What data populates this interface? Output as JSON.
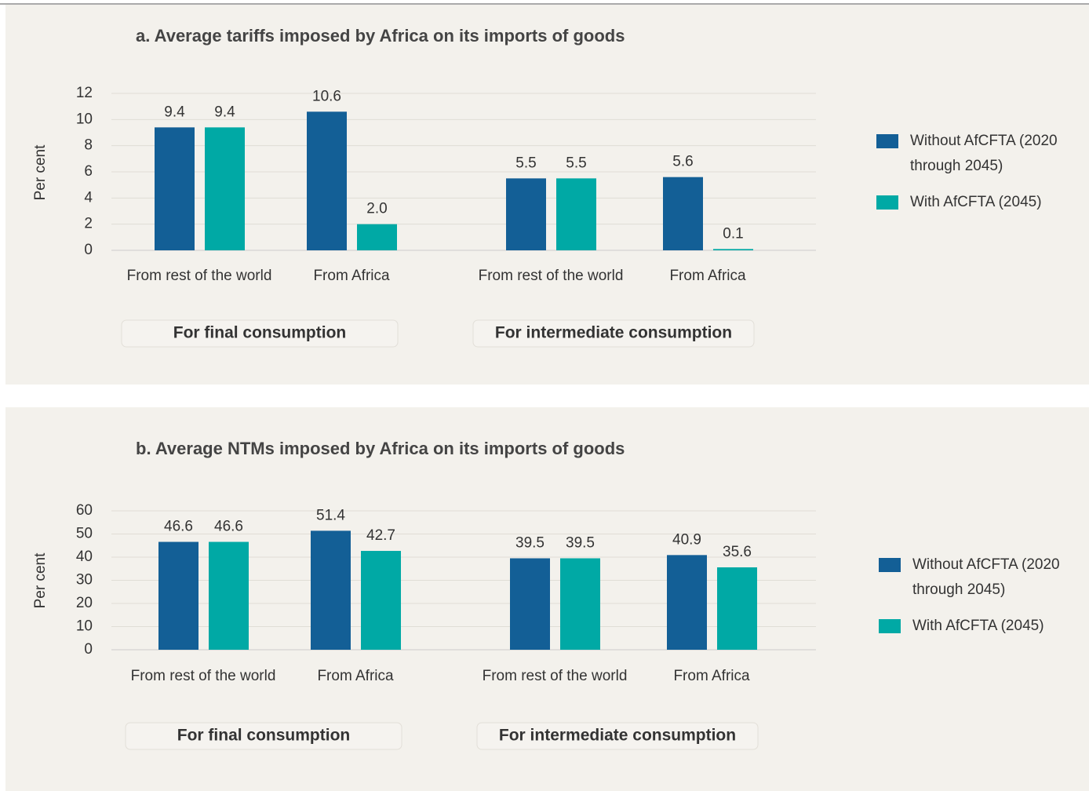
{
  "chart_data": [
    {
      "type": "bar",
      "title": "a. Average tariffs imposed by Africa on its imports of goods",
      "y_label": "Per cent",
      "categories": [
        "From rest of the world",
        "From Africa",
        "From rest of the world",
        "From Africa"
      ],
      "groups": [
        "For final consumption",
        "For intermediate consumption"
      ],
      "series": [
        {
          "name": "Without AfCFTA (2020 through 2045)",
          "color": "#135f96",
          "values": [
            9.4,
            10.6,
            5.5,
            5.6
          ],
          "value_labels": [
            "9.4",
            "10.6",
            "5.5",
            "5.6"
          ]
        },
        {
          "name": "With AfCFTA (2045)",
          "color": "#00a9a5",
          "values": [
            9.4,
            2,
            5.5,
            0.1
          ],
          "value_labels": [
            "9.4",
            "2.0",
            "5.5",
            "0.1"
          ]
        }
      ],
      "ylim": [
        0,
        12
      ],
      "yticks": [
        0,
        2,
        4,
        6,
        8,
        10,
        12
      ],
      "grid": true,
      "legend": "right"
    },
    {
      "type": "bar",
      "title": "b. Average NTMs imposed by Africa on its imports of goods",
      "y_label": "Per cent",
      "categories": [
        "From rest of the world",
        "From Africa",
        "From rest of the world",
        "From Africa"
      ],
      "groups": [
        "For final consumption",
        "For intermediate consumption"
      ],
      "series": [
        {
          "name": "Without AfCFTA (2020 through 2045)",
          "color": "#135f96",
          "values": [
            46.6,
            51.4,
            39.5,
            40.9
          ]
        },
        {
          "name": "With AfCFTA (2045)",
          "color": "#00a9a5",
          "values": [
            46.6,
            42.7,
            39.5,
            35.6
          ]
        }
      ],
      "ylim": [
        0,
        60
      ],
      "yticks": [
        0,
        10,
        20,
        30,
        40,
        50,
        60
      ],
      "grid": true,
      "legend": "right"
    }
  ]
}
